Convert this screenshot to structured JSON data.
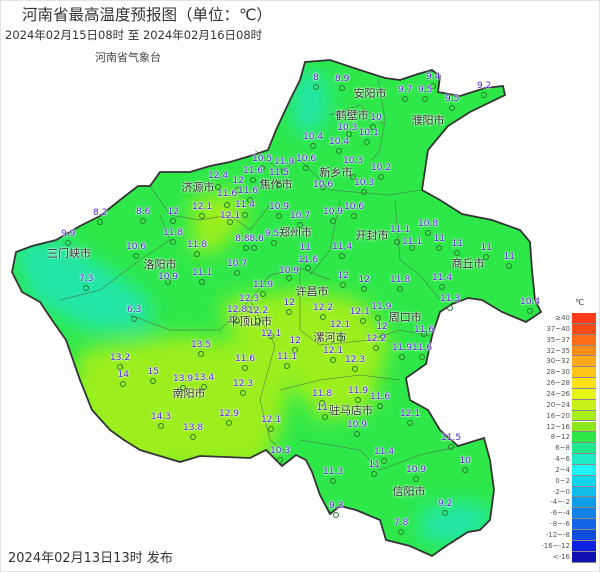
{
  "header": {
    "title": "河南省最高温度预报图（单位：℃）",
    "period": "2024年02月15日08时  至  2024年02月16日08时",
    "agency": "河南省气象台"
  },
  "footer": {
    "issued": "2024年02月13日13时 发布"
  },
  "map_colors": {
    "base": "#2ee84a",
    "warm": "#9cef1c",
    "cool": "#22e6a8",
    "border": "#333333"
  },
  "cities": [
    "安阳市",
    "鹤壁市",
    "濮阳市",
    "新乡市",
    "焦作市",
    "济源市",
    "三门峡市",
    "洛阳市",
    "郑州市",
    "开封市",
    "商丘市",
    "许昌市",
    "平顶山市",
    "漯河市",
    "周口市",
    "南阳市",
    "驻马店市",
    "信阳市"
  ],
  "stations": [
    "8",
    "8.9",
    "9.4",
    "9.7",
    "9.5",
    "9.2",
    "9.5",
    "10",
    "10.3",
    "10.1",
    "10.4",
    "10.4",
    "10.6",
    "10.3",
    "10.2",
    "10.6",
    "10.3",
    "11.9",
    "11.5",
    "10.5",
    "11.6",
    "12",
    "11.6",
    "11.6",
    "11.4",
    "12.4",
    "12.1",
    "12.1",
    "8.2",
    "9.9",
    "8.6",
    "12",
    "11.8",
    "11.8",
    "10.6",
    "10.9",
    "11.1",
    "7.3",
    "10.7",
    "11.9",
    "10.9",
    "10.7",
    "10.9",
    "10.6",
    "9.5",
    "8.8",
    "8.6",
    "11",
    "11.4",
    "11.6",
    "10.9",
    "11.1",
    "11.1",
    "10.8",
    "11",
    "11",
    "11",
    "11",
    "11.8",
    "11.4",
    "11.3",
    "10.4",
    "12",
    "12",
    "6.3",
    "12.3",
    "12.8",
    "12.2",
    "12.1",
    "12",
    "12.2",
    "12.1",
    "11.9",
    "12",
    "12.1",
    "11.6",
    "12.2",
    "11.9",
    "11.6",
    "12",
    "11.1",
    "12.1",
    "12.3",
    "13.5",
    "13.2",
    "11.6",
    "14",
    "15",
    "13.9",
    "13.4",
    "12.3",
    "12.1",
    "11.8",
    "11.9",
    "11",
    "11.6",
    "14.3",
    "12.9",
    "13.8",
    "12.1",
    "10.9",
    "11.5",
    "10.3",
    "11.3",
    "11.4",
    "11",
    "10.9",
    "10",
    "9.3",
    "9.2",
    "7.8",
    "7.8"
  ],
  "legend": {
    "unit": "℃",
    "items": [
      {
        "label": "≥40",
        "color": "#ff3a1a"
      },
      {
        "label": "37~40",
        "color": "#ff4c18"
      },
      {
        "label": "35~37",
        "color": "#ff6c18"
      },
      {
        "label": "32~35",
        "color": "#ff8c18"
      },
      {
        "label": "30~32",
        "color": "#ffa818"
      },
      {
        "label": "28~30",
        "color": "#ffc418"
      },
      {
        "label": "26~28",
        "color": "#ffe018"
      },
      {
        "label": "24~26",
        "color": "#e6f518"
      },
      {
        "label": "20~24",
        "color": "#c6f21a"
      },
      {
        "label": "16~20",
        "color": "#a8ee1a"
      },
      {
        "label": "12~16",
        "color": "#8ee61c"
      },
      {
        "label": "8~12",
        "color": "#2ee84a"
      },
      {
        "label": "6~8",
        "color": "#1ee88c"
      },
      {
        "label": "4~6",
        "color": "#1eecc4"
      },
      {
        "label": "2~4",
        "color": "#1ef4f4"
      },
      {
        "label": "0~2",
        "color": "#10d4ea"
      },
      {
        "label": "-2~0",
        "color": "#10bce8"
      },
      {
        "label": "-4~-2",
        "color": "#109ce8"
      },
      {
        "label": "-6~-4",
        "color": "#1082e8"
      },
      {
        "label": "-8~-6",
        "color": "#1066e6"
      },
      {
        "label": "-12~-8",
        "color": "#104ce0"
      },
      {
        "label": "-16~-12",
        "color": "#1020e0"
      },
      {
        "label": "<-16",
        "color": "#1010b0"
      }
    ]
  }
}
